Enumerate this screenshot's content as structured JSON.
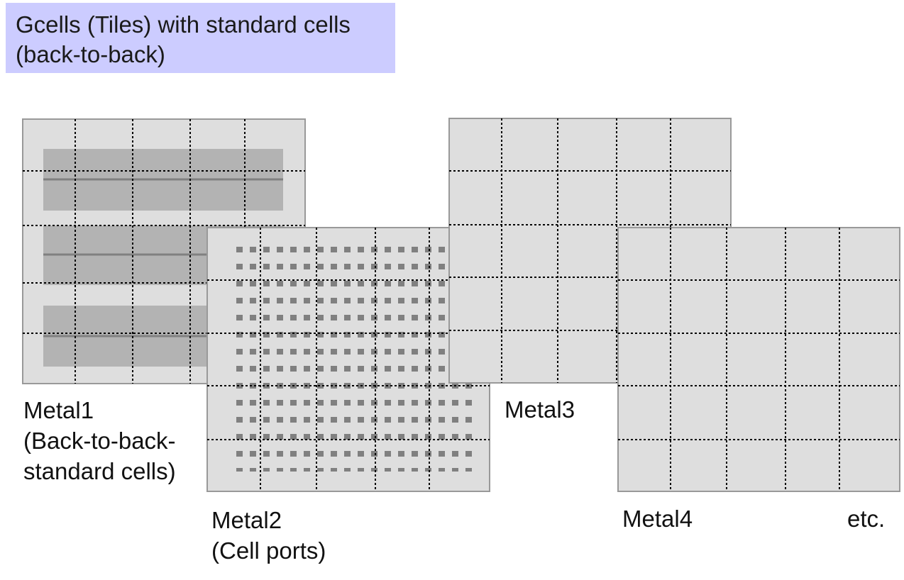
{
  "title": {
    "line1": "Gcells (Tiles) with standard cells",
    "line2": "(back-to-back)"
  },
  "layers": [
    {
      "id": "metal1",
      "label_lines": [
        "Metal1",
        "(Back-to-back-",
        "standard cells)"
      ]
    },
    {
      "id": "metal2",
      "label_lines": [
        "Metal2",
        "(Cell ports)"
      ]
    },
    {
      "id": "metal3",
      "label_lines": [
        "Metal3"
      ]
    },
    {
      "id": "metal4",
      "label_lines": [
        "Metal4"
      ]
    }
  ],
  "etc_label": "etc.",
  "colors": {
    "title_bg": "#ccccff",
    "layer_fill": "#dedede",
    "layer_border": "#999999",
    "cell_row": "#b3b3b3",
    "rail": "#808080",
    "port": "#808080",
    "grid_line": "#000000"
  }
}
